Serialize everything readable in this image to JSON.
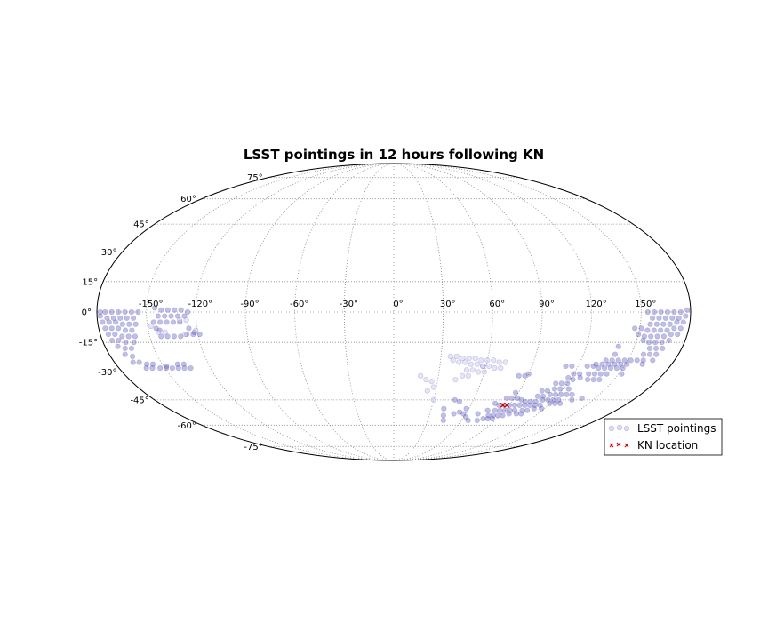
{
  "chart_data": {
    "type": "scatter",
    "projection": "mollweide",
    "title": "LSST pointings in 12 hours following KN",
    "grid": true,
    "xlim": [
      -180,
      180
    ],
    "ylim": [
      -90,
      90
    ],
    "lon_ticks": [
      "-150°",
      "-120°",
      "-90°",
      "-60°",
      "-30°",
      "0°",
      "30°",
      "60°",
      "90°",
      "120°",
      "150°"
    ],
    "lat_ticks": [
      "75°",
      "60°",
      "45°",
      "30°",
      "15°",
      "0°",
      "-15°",
      "-30°",
      "-45°",
      "-60°",
      "-75°"
    ],
    "lon_tick_values": [
      -150,
      -120,
      -90,
      -60,
      -30,
      0,
      30,
      60,
      90,
      120,
      150
    ],
    "lat_tick_values": [
      75,
      60,
      45,
      30,
      15,
      0,
      -15,
      -30,
      -45,
      -60,
      -75
    ],
    "legend": {
      "placement": "lower-right",
      "entries": [
        "LSST pointings",
        "KN location"
      ]
    },
    "series": [
      {
        "name": "LSST pointings",
        "marker": "circle",
        "color": "#4b47b4",
        "points": [
          [
            -178,
            0
          ],
          [
            -175,
            0
          ],
          [
            -171,
            0
          ],
          [
            -167,
            0
          ],
          [
            -163,
            0
          ],
          [
            -159,
            0
          ],
          [
            -155,
            0
          ],
          [
            -178,
            -2
          ],
          [
            -174,
            -3
          ],
          [
            -170,
            -3
          ],
          [
            -166,
            -3
          ],
          [
            -162,
            -3
          ],
          [
            -158,
            -3
          ],
          [
            -177,
            -5
          ],
          [
            -173,
            -5
          ],
          [
            -169,
            -5
          ],
          [
            -165,
            -6
          ],
          [
            -161,
            -6
          ],
          [
            -157,
            -6
          ],
          [
            -176,
            -8
          ],
          [
            -172,
            -8
          ],
          [
            -168,
            -8
          ],
          [
            -164,
            -9
          ],
          [
            -160,
            -9
          ],
          [
            -175,
            -11
          ],
          [
            -171,
            -11
          ],
          [
            -167,
            -12
          ],
          [
            -163,
            -12
          ],
          [
            -159,
            -12
          ],
          [
            -174,
            -14
          ],
          [
            -170,
            -14
          ],
          [
            -166,
            -15
          ],
          [
            -161,
            -15
          ],
          [
            -172,
            -17
          ],
          [
            -168,
            -18
          ],
          [
            -164,
            -18
          ],
          [
            -170,
            -21
          ],
          [
            -166,
            -22
          ],
          [
            -168,
            -25
          ],
          [
            -164,
            -25
          ],
          [
            -160,
            -26
          ],
          [
            -156,
            -26
          ],
          [
            -162,
            -28
          ],
          [
            -158,
            -28
          ],
          [
            -153,
            -28
          ],
          [
            -149,
            -28
          ],
          [
            -145,
            -28
          ],
          [
            -141,
            -28
          ],
          [
            -137,
            -28
          ],
          [
            -133,
            -28
          ],
          [
            -148,
            -27
          ],
          [
            -140,
            -26
          ],
          [
            -136,
            -26
          ],
          [
            -145,
            2
          ],
          [
            -141,
            1
          ],
          [
            -137,
            1
          ],
          [
            -133,
            1
          ],
          [
            -129,
            1
          ],
          [
            -125,
            0
          ],
          [
            -143,
            -2
          ],
          [
            -139,
            -2
          ],
          [
            -135,
            -2
          ],
          [
            -131,
            -2
          ],
          [
            -127,
            -2
          ],
          [
            -146,
            -5
          ],
          [
            -142,
            -5
          ],
          [
            -138,
            -5
          ],
          [
            -134,
            -5
          ],
          [
            -130,
            -5
          ],
          [
            -145,
            -8
          ],
          [
            -143,
            -9
          ],
          [
            -125,
            -8
          ],
          [
            -122,
            -10
          ],
          [
            -143,
            -12
          ],
          [
            -139,
            -12
          ],
          [
            -135,
            -12
          ],
          [
            -131,
            -12
          ],
          [
            -127,
            -11
          ],
          [
            -123,
            -11
          ],
          [
            -119,
            -11
          ],
          [
            178,
            1
          ],
          [
            174,
            0
          ],
          [
            170,
            0
          ],
          [
            166,
            0
          ],
          [
            162,
            0
          ],
          [
            158,
            0
          ],
          [
            154,
            0
          ],
          [
            177,
            -2
          ],
          [
            173,
            -3
          ],
          [
            169,
            -3
          ],
          [
            165,
            -3
          ],
          [
            161,
            -3
          ],
          [
            157,
            -3
          ],
          [
            176,
            -5
          ],
          [
            172,
            -5
          ],
          [
            168,
            -6
          ],
          [
            164,
            -6
          ],
          [
            160,
            -6
          ],
          [
            156,
            -6
          ],
          [
            175,
            -8
          ],
          [
            171,
            -8
          ],
          [
            167,
            -9
          ],
          [
            163,
            -9
          ],
          [
            159,
            -9
          ],
          [
            155,
            -9
          ],
          [
            151,
            -8
          ],
          [
            147,
            -8
          ],
          [
            174,
            -11
          ],
          [
            170,
            -11
          ],
          [
            166,
            -12
          ],
          [
            162,
            -12
          ],
          [
            158,
            -12
          ],
          [
            154,
            -12
          ],
          [
            150,
            -11
          ],
          [
            170,
            -14
          ],
          [
            166,
            -15
          ],
          [
            162,
            -15
          ],
          [
            158,
            -15
          ],
          [
            154,
            -14
          ],
          [
            168,
            -18
          ],
          [
            164,
            -18
          ],
          [
            160,
            -18
          ],
          [
            140,
            -17
          ],
          [
            166,
            -21
          ],
          [
            162,
            -21
          ],
          [
            158,
            -21
          ],
          [
            140,
            -21
          ],
          [
            166,
            -24
          ],
          [
            160,
            -24
          ],
          [
            156,
            -24
          ],
          [
            152,
            -24
          ],
          [
            148,
            -24
          ],
          [
            144,
            -24
          ],
          [
            140,
            -24
          ],
          [
            136,
            -24
          ],
          [
            161,
            -26
          ],
          [
            151,
            -26
          ],
          [
            147,
            -26
          ],
          [
            143,
            -26
          ],
          [
            139,
            -26
          ],
          [
            135,
            -26
          ],
          [
            131,
            -26
          ],
          [
            150,
            -28
          ],
          [
            146,
            -28
          ],
          [
            142,
            -28
          ],
          [
            138,
            -28
          ],
          [
            134,
            -28
          ],
          [
            130,
            -27
          ],
          [
            126,
            -27
          ],
          [
            116,
            -27
          ],
          [
            112,
            -27
          ],
          [
            152,
            -31
          ],
          [
            142,
            -31
          ],
          [
            138,
            -31
          ],
          [
            134,
            -31
          ],
          [
            130,
            -31
          ],
          [
            124,
            -31
          ],
          [
            120,
            -31
          ],
          [
            140,
            -34
          ],
          [
            136,
            -34
          ],
          [
            132,
            -34
          ],
          [
            126,
            -33
          ],
          [
            122,
            -34
          ],
          [
            118,
            -33
          ],
          [
            120,
            -36
          ],
          [
            116,
            -36
          ],
          [
            112,
            -36
          ],
          [
            124,
            -39
          ],
          [
            118,
            -39
          ],
          [
            114,
            -39
          ],
          [
            110,
            -40
          ],
          [
            106,
            -40
          ],
          [
            90,
            -31
          ],
          [
            84,
            -32
          ],
          [
            88,
            -32
          ],
          [
            130,
            -42
          ],
          [
            126,
            -42
          ],
          [
            122,
            -42
          ],
          [
            118,
            -42
          ],
          [
            114,
            -42
          ],
          [
            110,
            -43
          ],
          [
            106,
            -43
          ],
          [
            88,
            -41
          ],
          [
            140,
            -44
          ],
          [
            134,
            -45
          ],
          [
            124,
            -45
          ],
          [
            120,
            -45
          ],
          [
            116,
            -45
          ],
          [
            112,
            -45
          ],
          [
            108,
            -46
          ],
          [
            104,
            -46
          ],
          [
            100,
            -46
          ],
          [
            96,
            -45
          ],
          [
            92,
            -44
          ],
          [
            88,
            -44
          ],
          [
            84,
            -44
          ],
          [
            128,
            -47
          ],
          [
            124,
            -47
          ],
          [
            120,
            -47
          ],
          [
            114,
            -48
          ],
          [
            110,
            -48
          ],
          [
            106,
            -48
          ],
          [
            102,
            -48
          ],
          [
            98,
            -48
          ],
          [
            94,
            -48
          ],
          [
            90,
            -48
          ],
          [
            86,
            -48
          ],
          [
            82,
            -48
          ],
          [
            78,
            -47
          ],
          [
            118,
            -50
          ],
          [
            112,
            -50
          ],
          [
            108,
            -51
          ],
          [
            104,
            -51
          ],
          [
            98,
            -51
          ],
          [
            94,
            -51
          ],
          [
            90,
            -51
          ],
          [
            86,
            -51
          ],
          [
            82,
            -51
          ],
          [
            76,
            -51
          ],
          [
            106,
            -53
          ],
          [
            102,
            -53
          ],
          [
            96,
            -53
          ],
          [
            92,
            -54
          ],
          [
            88,
            -54
          ],
          [
            84,
            -54
          ],
          [
            80,
            -54
          ],
          [
            70,
            -53
          ],
          [
            86,
            -56
          ],
          [
            82,
            -56
          ],
          [
            78,
            -56
          ],
          [
            74,
            -57
          ],
          [
            58,
            -53
          ],
          [
            62,
            -55
          ],
          [
            66,
            -57
          ],
          [
            46,
            -45
          ],
          [
            50,
            -46
          ],
          [
            58,
            -50
          ],
          [
            54,
            -52
          ],
          [
            50,
            -53
          ],
          [
            42,
            -54
          ],
          [
            40,
            -50
          ],
          [
            44,
            -57
          ]
        ]
      },
      {
        "name": "LSST pointings (faint)",
        "marker": "circle",
        "color": "#c8c6ea",
        "points": [
          [
            36,
            -22
          ],
          [
            40,
            -22
          ],
          [
            44,
            -23
          ],
          [
            48,
            -23
          ],
          [
            52,
            -23
          ],
          [
            56,
            -24
          ],
          [
            60,
            -24
          ],
          [
            64,
            -24
          ],
          [
            68,
            -25
          ],
          [
            72,
            -25
          ],
          [
            38,
            -24
          ],
          [
            42,
            -25
          ],
          [
            46,
            -25
          ],
          [
            50,
            -26
          ],
          [
            54,
            -26
          ],
          [
            58,
            -27
          ],
          [
            62,
            -27
          ],
          [
            66,
            -28
          ],
          [
            70,
            -28
          ],
          [
            48,
            -29
          ],
          [
            52,
            -29
          ],
          [
            56,
            -30
          ],
          [
            60,
            -30
          ],
          [
            46,
            -32
          ],
          [
            50,
            -32
          ],
          [
            42,
            -34
          ],
          [
            58,
            -27
          ],
          [
            18,
            -32
          ],
          [
            22,
            -34
          ],
          [
            26,
            -35
          ],
          [
            28,
            -38
          ],
          [
            24,
            -40
          ],
          [
            30,
            -45
          ],
          [
            -148,
            -7
          ],
          [
            -144,
            -10
          ],
          [
            -140,
            -10
          ],
          [
            -128,
            -11
          ],
          [
            -130,
            -4
          ],
          [
            -126,
            -4
          ],
          [
            -121,
            -9
          ]
        ]
      },
      {
        "name": "KN location",
        "marker": "x",
        "color": "#d40000",
        "points": [
          [
            85,
            -48
          ],
          [
            88,
            -48
          ]
        ]
      }
    ]
  }
}
